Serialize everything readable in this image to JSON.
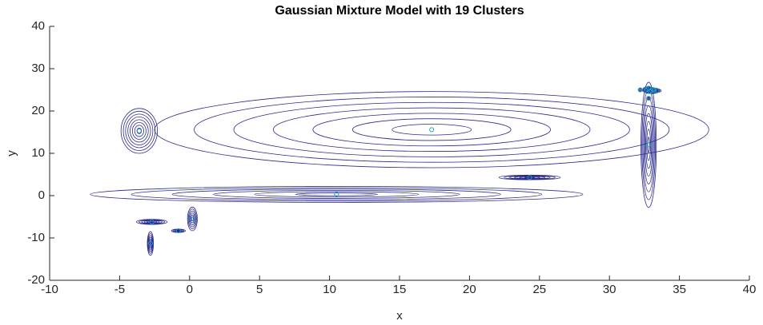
{
  "chart_data": {
    "type": "gmm-contour",
    "title": "Gaussian Mixture Model with 19 Clusters",
    "xlabel": "x",
    "ylabel": "y",
    "xlim": [
      -10,
      40
    ],
    "xticks": [
      -10,
      -5,
      0,
      5,
      10,
      15,
      20,
      25,
      30,
      35,
      40
    ],
    "ylim": [
      -20,
      40
    ],
    "yticks": [
      -20,
      -10,
      0,
      10,
      20,
      30,
      40
    ],
    "contour_color": "#2a2a8c",
    "mean_color": "#1fa0c8",
    "clusters": [
      {
        "x": 17.3,
        "y": 15.6,
        "sx": 19.8,
        "sy": 9.0,
        "levels": 7
      },
      {
        "x": 10.5,
        "y": 0.3,
        "sx": 17.6,
        "sy": 1.9,
        "levels": 6
      },
      {
        "x": -3.6,
        "y": 15.3,
        "sx": 1.3,
        "sy": 5.3,
        "levels": 8
      },
      {
        "x": 32.8,
        "y": 12.0,
        "sx": 0.55,
        "sy": 14.8,
        "levels": 8
      },
      {
        "x": 24.3,
        "y": 4.3,
        "sx": 2.2,
        "sy": 0.55,
        "levels": 6
      },
      {
        "x": -2.7,
        "y": -6.2,
        "sx": 1.1,
        "sy": 0.6,
        "levels": 6
      },
      {
        "x": -2.8,
        "y": -11.3,
        "sx": 0.22,
        "sy": 2.8,
        "levels": 6
      },
      {
        "x": -0.8,
        "y": -8.3,
        "sx": 0.5,
        "sy": 0.4,
        "levels": 5
      },
      {
        "x": 0.2,
        "y": -5.5,
        "sx": 0.35,
        "sy": 2.8,
        "levels": 6
      },
      {
        "x": 33.0,
        "y": 24.8,
        "sx": 0.6,
        "sy": 0.7,
        "levels": 5
      },
      {
        "x": 32.7,
        "y": 25.2,
        "sx": 0.3,
        "sy": 0.5,
        "levels": 4
      },
      {
        "x": 32.8,
        "y": 25.4,
        "sx": 0.2,
        "sy": 0.4,
        "levels": 3
      },
      {
        "x": 33.2,
        "y": 24.9,
        "sx": 0.4,
        "sy": 0.5,
        "levels": 4
      },
      {
        "x": 32.2,
        "y": 25.0,
        "sx": 0.15,
        "sy": 0.3,
        "levels": 2
      },
      {
        "x": 32.9,
        "y": 24.6,
        "sx": 0.3,
        "sy": 0.4,
        "levels": 3
      },
      {
        "x": 33.4,
        "y": 24.8,
        "sx": 0.3,
        "sy": 0.4,
        "levels": 3
      },
      {
        "x": 32.6,
        "y": 24.9,
        "sx": 0.25,
        "sy": 0.4,
        "levels": 3
      },
      {
        "x": 33.1,
        "y": 25.1,
        "sx": 0.2,
        "sy": 0.3,
        "levels": 3
      },
      {
        "x": 32.8,
        "y": 23.0,
        "sx": 0.15,
        "sy": 0.3,
        "levels": 2
      }
    ]
  }
}
